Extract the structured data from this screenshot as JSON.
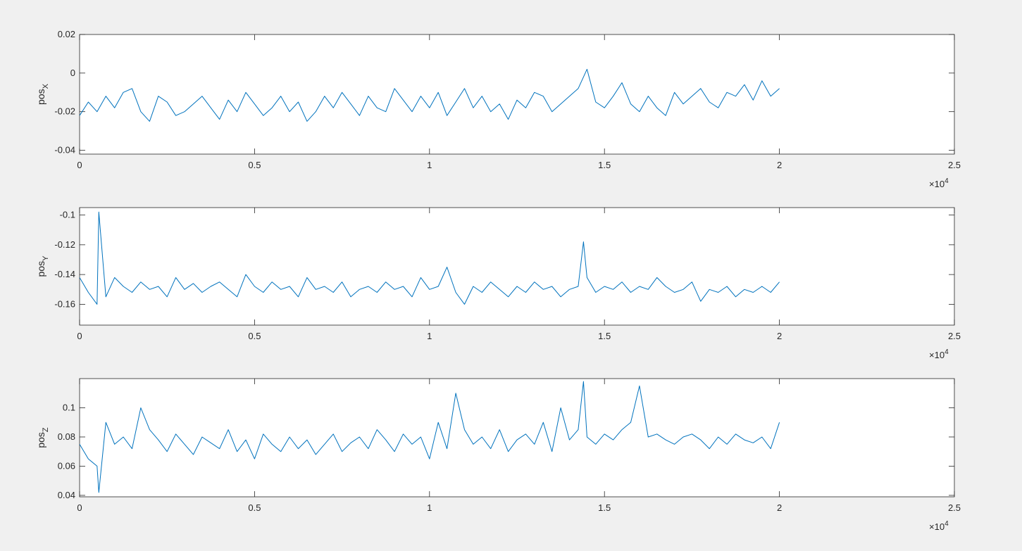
{
  "figure": {
    "background": "#f0f0f0",
    "axes_color": "#ffffff",
    "line_color": "#0072bd"
  },
  "chart_data": [
    {
      "type": "line",
      "title": "",
      "xlabel": "",
      "ylabel_base": "pos",
      "ylabel_sub": "X",
      "xlim": [
        0,
        25000
      ],
      "ylim": [
        -0.042,
        0.02
      ],
      "xticks": [
        0,
        5000,
        10000,
        15000,
        20000,
        25000
      ],
      "xticklabels": [
        "0",
        "0.5",
        "1",
        "1.5",
        "2",
        "2.5"
      ],
      "yticks": [
        -0.04,
        -0.02,
        0,
        0.02
      ],
      "yticklabels": [
        "-0.04",
        "-0.02",
        "0",
        "0.02"
      ],
      "xexponent_base": "×10",
      "xexponent_power": "4",
      "grid": false,
      "series": [
        {
          "x": [
            0,
            250,
            500,
            750,
            1000,
            1250,
            1500,
            1750,
            2000,
            2250,
            2500,
            2750,
            3000,
            3250,
            3500,
            3750,
            4000,
            4250,
            4500,
            4750,
            5000,
            5250,
            5500,
            5750,
            6000,
            6250,
            6500,
            6750,
            7000,
            7250,
            7500,
            7750,
            8000,
            8250,
            8500,
            8750,
            9000,
            9250,
            9500,
            9750,
            10000,
            10250,
            10500,
            10750,
            11000,
            11250,
            11500,
            11750,
            12000,
            12250,
            12500,
            12750,
            13000,
            13250,
            13500,
            13750,
            14000,
            14250,
            14500,
            14750,
            15000,
            15250,
            15500,
            15750,
            16000,
            16250,
            16500,
            16750,
            17000,
            17250,
            17500,
            17750,
            18000,
            18250,
            18500,
            18750,
            19000,
            19250,
            19500,
            19750,
            20000
          ],
          "y": [
            -0.022,
            -0.015,
            -0.02,
            -0.012,
            -0.018,
            -0.01,
            -0.008,
            -0.02,
            -0.025,
            -0.012,
            -0.015,
            -0.022,
            -0.02,
            -0.016,
            -0.012,
            -0.018,
            -0.024,
            -0.014,
            -0.02,
            -0.01,
            -0.016,
            -0.022,
            -0.018,
            -0.012,
            -0.02,
            -0.015,
            -0.025,
            -0.02,
            -0.012,
            -0.018,
            -0.01,
            -0.016,
            -0.022,
            -0.012,
            -0.018,
            -0.02,
            -0.008,
            -0.014,
            -0.02,
            -0.012,
            -0.018,
            -0.01,
            -0.022,
            -0.015,
            -0.008,
            -0.018,
            -0.012,
            -0.02,
            -0.016,
            -0.024,
            -0.014,
            -0.018,
            -0.01,
            -0.012,
            -0.02,
            -0.016,
            -0.012,
            -0.008,
            0.002,
            -0.015,
            -0.018,
            -0.012,
            -0.005,
            -0.016,
            -0.02,
            -0.012,
            -0.018,
            -0.022,
            -0.01,
            -0.016,
            -0.012,
            -0.008,
            -0.015,
            -0.018,
            -0.01,
            -0.012,
            -0.006,
            -0.014,
            -0.004,
            -0.012,
            -0.008
          ]
        }
      ]
    },
    {
      "type": "line",
      "title": "",
      "xlabel": "",
      "ylabel_base": "pos",
      "ylabel_sub": "Y",
      "xlim": [
        0,
        25000
      ],
      "ylim": [
        -0.174,
        -0.095
      ],
      "xticks": [
        0,
        5000,
        10000,
        15000,
        20000,
        25000
      ],
      "xticklabels": [
        "0",
        "0.5",
        "1",
        "1.5",
        "2",
        "2.5"
      ],
      "yticks": [
        -0.16,
        -0.14,
        -0.12,
        -0.1
      ],
      "yticklabels": [
        "-0.16",
        "-0.14",
        "-0.12",
        "-0.1"
      ],
      "xexponent_base": "×10",
      "xexponent_power": "4",
      "grid": false,
      "series": [
        {
          "x": [
            0,
            250,
            500,
            550,
            750,
            1000,
            1250,
            1500,
            1750,
            2000,
            2250,
            2500,
            2750,
            3000,
            3250,
            3500,
            3750,
            4000,
            4250,
            4500,
            4750,
            5000,
            5250,
            5500,
            5750,
            6000,
            6250,
            6500,
            6750,
            7000,
            7250,
            7500,
            7750,
            8000,
            8250,
            8500,
            8750,
            9000,
            9250,
            9500,
            9750,
            10000,
            10250,
            10500,
            10750,
            11000,
            11250,
            11500,
            11750,
            12000,
            12250,
            12500,
            12750,
            13000,
            13250,
            13500,
            13750,
            14000,
            14250,
            14400,
            14500,
            14750,
            15000,
            15250,
            15500,
            15750,
            16000,
            16250,
            16500,
            16750,
            17000,
            17250,
            17500,
            17750,
            18000,
            18250,
            18500,
            18750,
            19000,
            19250,
            19500,
            19750,
            20000
          ],
          "y": [
            -0.142,
            -0.152,
            -0.16,
            -0.098,
            -0.155,
            -0.142,
            -0.148,
            -0.152,
            -0.145,
            -0.15,
            -0.148,
            -0.155,
            -0.142,
            -0.15,
            -0.146,
            -0.152,
            -0.148,
            -0.145,
            -0.15,
            -0.155,
            -0.14,
            -0.148,
            -0.152,
            -0.145,
            -0.15,
            -0.148,
            -0.155,
            -0.142,
            -0.15,
            -0.148,
            -0.152,
            -0.145,
            -0.155,
            -0.15,
            -0.148,
            -0.152,
            -0.145,
            -0.15,
            -0.148,
            -0.155,
            -0.142,
            -0.15,
            -0.148,
            -0.135,
            -0.152,
            -0.16,
            -0.148,
            -0.152,
            -0.145,
            -0.15,
            -0.155,
            -0.148,
            -0.152,
            -0.145,
            -0.15,
            -0.148,
            -0.155,
            -0.15,
            -0.148,
            -0.118,
            -0.142,
            -0.152,
            -0.148,
            -0.15,
            -0.145,
            -0.152,
            -0.148,
            -0.15,
            -0.142,
            -0.148,
            -0.152,
            -0.15,
            -0.145,
            -0.158,
            -0.15,
            -0.152,
            -0.148,
            -0.155,
            -0.15,
            -0.152,
            -0.148,
            -0.152,
            -0.145
          ]
        }
      ]
    },
    {
      "type": "line",
      "title": "",
      "xlabel": "",
      "ylabel_base": "pos",
      "ylabel_sub": "Z",
      "xlim": [
        0,
        25000
      ],
      "ylim": [
        0.039,
        0.12
      ],
      "xticks": [
        0,
        5000,
        10000,
        15000,
        20000,
        25000
      ],
      "xticklabels": [
        "0",
        "0.5",
        "1",
        "1.5",
        "2",
        "2.5"
      ],
      "yticks": [
        0.04,
        0.06,
        0.08,
        0.1
      ],
      "yticklabels": [
        "0.04",
        "0.06",
        "0.08",
        "0.1"
      ],
      "xexponent_base": "×10",
      "xexponent_power": "4",
      "grid": false,
      "series": [
        {
          "x": [
            0,
            250,
            500,
            550,
            750,
            1000,
            1250,
            1500,
            1750,
            2000,
            2250,
            2500,
            2750,
            3000,
            3250,
            3500,
            3750,
            4000,
            4250,
            4500,
            4750,
            5000,
            5250,
            5500,
            5750,
            6000,
            6250,
            6500,
            6750,
            7000,
            7250,
            7500,
            7750,
            8000,
            8250,
            8500,
            8750,
            9000,
            9250,
            9500,
            9750,
            10000,
            10250,
            10500,
            10750,
            11000,
            11250,
            11500,
            11750,
            12000,
            12250,
            12500,
            12750,
            13000,
            13250,
            13500,
            13750,
            14000,
            14250,
            14400,
            14500,
            14750,
            15000,
            15250,
            15500,
            15750,
            16000,
            16250,
            16500,
            16750,
            17000,
            17250,
            17500,
            17750,
            18000,
            18250,
            18500,
            18750,
            19000,
            19250,
            19500,
            19750,
            20000
          ],
          "y": [
            0.075,
            0.065,
            0.06,
            0.042,
            0.09,
            0.075,
            0.08,
            0.072,
            0.1,
            0.085,
            0.078,
            0.07,
            0.082,
            0.075,
            0.068,
            0.08,
            0.076,
            0.072,
            0.085,
            0.07,
            0.078,
            0.065,
            0.082,
            0.075,
            0.07,
            0.08,
            0.072,
            0.078,
            0.068,
            0.075,
            0.082,
            0.07,
            0.076,
            0.08,
            0.072,
            0.085,
            0.078,
            0.07,
            0.082,
            0.075,
            0.08,
            0.065,
            0.09,
            0.072,
            0.11,
            0.085,
            0.075,
            0.08,
            0.072,
            0.085,
            0.07,
            0.078,
            0.082,
            0.075,
            0.09,
            0.07,
            0.1,
            0.078,
            0.085,
            0.118,
            0.08,
            0.075,
            0.082,
            0.078,
            0.085,
            0.09,
            0.115,
            0.08,
            0.082,
            0.078,
            0.075,
            0.08,
            0.082,
            0.078,
            0.072,
            0.08,
            0.075,
            0.082,
            0.078,
            0.076,
            0.08,
            0.072,
            0.09
          ]
        }
      ]
    }
  ]
}
